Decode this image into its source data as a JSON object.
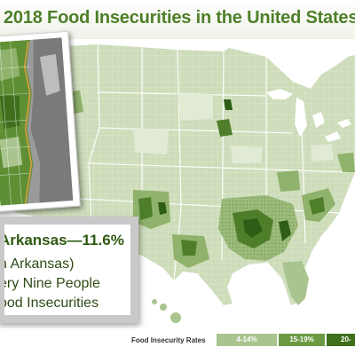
{
  "title": "2018 Food Insecurities in the United States",
  "callout": {
    "line1": "Arkansas—11.6%",
    "line2": "n Arkansas)",
    "line3": "ery Nine People",
    "line4": "ood Insecurities"
  },
  "legend": {
    "title": "Food Insecurity Rates",
    "classes": [
      {
        "label": "4-14%",
        "color": "#a9c48e"
      },
      {
        "label": "15-19%",
        "color": "#6b9a43"
      },
      {
        "label": "20-",
        "color": "#3f6e1d"
      }
    ]
  },
  "colors": {
    "base": "#cddcb9",
    "light": "#bcd0a4",
    "mid": "#8fb26c",
    "dark": "#4f7e2a",
    "darkest": "#2f5d16",
    "water": "#ffffff",
    "county_lines": "#ffffff"
  }
}
